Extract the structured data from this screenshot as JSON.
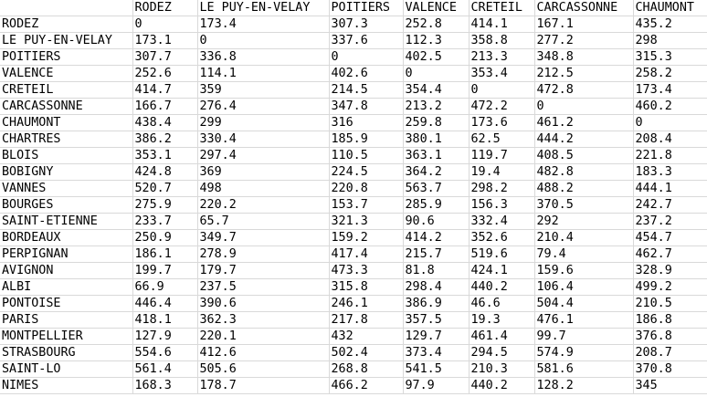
{
  "header": [
    "",
    "RODEZ",
    "LE PUY-EN-VELAY",
    "POITIERS",
    "VALENCE",
    "CRETEIL",
    "CARCASSONNE",
    "CHAUMONT"
  ],
  "rows": [
    [
      "RODEZ",
      "0",
      "173.4",
      "307.3",
      "252.8",
      "414.1",
      "167.1",
      "435.2"
    ],
    [
      "LE PUY-EN-VELAY",
      "173.1",
      "0",
      "337.6",
      "112.3",
      "358.8",
      "277.2",
      "298"
    ],
    [
      "POITIERS",
      "307.7",
      "336.8",
      "0",
      "402.5",
      "213.3",
      "348.8",
      "315.3"
    ],
    [
      "VALENCE",
      "252.6",
      "114.1",
      "402.6",
      "0",
      "353.4",
      "212.5",
      "258.2"
    ],
    [
      "CRETEIL",
      "414.7",
      "359",
      "214.5",
      "354.4",
      "0",
      "472.8",
      "173.4"
    ],
    [
      "CARCASSONNE",
      "166.7",
      "276.4",
      "347.8",
      "213.2",
      "472.2",
      "0",
      "460.2"
    ],
    [
      "CHAUMONT",
      "438.4",
      "299",
      "316",
      "259.8",
      "173.6",
      "461.2",
      "0"
    ],
    [
      "CHARTRES",
      "386.2",
      "330.4",
      "185.9",
      "380.1",
      "62.5",
      "444.2",
      "208.4"
    ],
    [
      "BLOIS",
      "353.1",
      "297.4",
      "110.5",
      "363.1",
      "119.7",
      "408.5",
      "221.8"
    ],
    [
      "BOBIGNY",
      "424.8",
      "369",
      "224.5",
      "364.2",
      "19.4",
      "482.8",
      "183.3"
    ],
    [
      "VANNES",
      "520.7",
      "498",
      "220.8",
      "563.7",
      "298.2",
      "488.2",
      "444.1"
    ],
    [
      "BOURGES",
      "275.9",
      "220.2",
      "153.7",
      "285.9",
      "156.3",
      "370.5",
      "242.7"
    ],
    [
      "SAINT-ETIENNE",
      "233.7",
      "65.7",
      "321.3",
      "90.6",
      "332.4",
      "292",
      "237.2"
    ],
    [
      "BORDEAUX",
      "250.9",
      "349.7",
      "159.2",
      "414.2",
      "352.6",
      "210.4",
      "454.7"
    ],
    [
      "PERPIGNAN",
      "186.1",
      "278.9",
      "417.4",
      "215.7",
      "519.6",
      "79.4",
      "462.7"
    ],
    [
      "AVIGNON",
      "199.7",
      "179.7",
      "473.3",
      "81.8",
      "424.1",
      "159.6",
      "328.9"
    ],
    [
      "ALBI",
      "66.9",
      "237.5",
      "315.8",
      "298.4",
      "440.2",
      "106.4",
      "499.2"
    ],
    [
      "PONTOISE",
      "446.4",
      "390.6",
      "246.1",
      "386.9",
      "46.6",
      "504.4",
      "210.5"
    ],
    [
      "PARIS",
      "418.1",
      "362.3",
      "217.8",
      "357.5",
      "19.3",
      "476.1",
      "186.8"
    ],
    [
      "MONTPELLIER",
      "127.9",
      "220.1",
      "432",
      "129.7",
      "461.4",
      "99.7",
      "376.8"
    ],
    [
      "STRASBOURG",
      "554.6",
      "412.6",
      "502.4",
      "373.4",
      "294.5",
      "574.9",
      "208.7"
    ],
    [
      "SAINT-LO",
      "561.4",
      "505.6",
      "268.8",
      "541.5",
      "210.3",
      "581.6",
      "370.8"
    ],
    [
      "NIMES",
      "168.3",
      "178.7",
      "466.2",
      "97.9",
      "440.2",
      "128.2",
      "345"
    ]
  ]
}
